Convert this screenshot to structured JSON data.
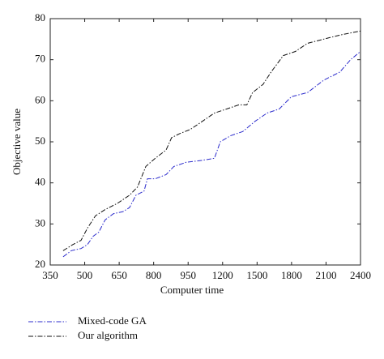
{
  "chart_data": {
    "type": "line",
    "x_label": "Computer time",
    "y_label": "Objective value",
    "xlim": [
      350,
      2400
    ],
    "xticks": [
      350,
      500,
      650,
      800,
      950,
      1200,
      1500,
      1800,
      2100,
      2400
    ],
    "ylim": [
      20,
      80
    ],
    "yticks": [
      20,
      30,
      40,
      50,
      60,
      70,
      80
    ],
    "series": [
      {
        "name": "Mixed-code GA",
        "color": "#2b2bcc",
        "x": [
          406,
          442,
          484,
          512,
          537,
          561,
          589,
          625,
          667,
          695,
          723,
          758,
          773,
          807,
          854,
          888,
          941,
          1053,
          1141,
          1183,
          1270,
          1376,
          1482,
          1587,
          1693,
          1799,
          1940,
          2079,
          2220,
          2313,
          2400
        ],
        "values": [
          22,
          23.5,
          24,
          25,
          27,
          28,
          31,
          32.5,
          33,
          34,
          37,
          38,
          41,
          41,
          42,
          44,
          45,
          45.5,
          46,
          50,
          51.5,
          52.5,
          55,
          57,
          58,
          61,
          62,
          65,
          67,
          70,
          72
        ]
      },
      {
        "name": "Our algorithm",
        "color": "#111111",
        "x": [
          406,
          449,
          484,
          512,
          547,
          589,
          642,
          695,
          730,
          766,
          807,
          854,
          878,
          913,
          965,
          1053,
          1141,
          1235,
          1341,
          1411,
          1461,
          1552,
          1622,
          1728,
          1833,
          1940,
          2079,
          2220,
          2400
        ],
        "values": [
          23.5,
          25,
          26,
          29,
          32,
          33.5,
          35,
          37,
          39,
          44,
          46,
          48,
          51,
          52,
          53,
          55,
          57,
          58,
          59,
          59,
          62,
          64,
          67,
          71,
          72,
          74,
          75,
          76,
          77
        ]
      }
    ]
  }
}
